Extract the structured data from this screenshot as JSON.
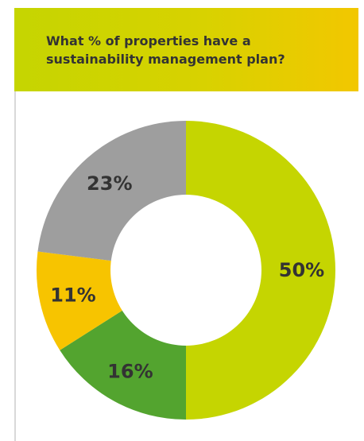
{
  "header": {
    "title": "What % of properties have a\nsustainability management plan?"
  },
  "chart_data": {
    "type": "pie",
    "donut": true,
    "title": "What % of properties have a sustainability management plan?",
    "slices": [
      {
        "value": 50,
        "label": "50%",
        "color": "#c5d501"
      },
      {
        "value": 16,
        "label": "16%",
        "color": "#53a42f"
      },
      {
        "value": 11,
        "label": "11%",
        "color": "#f7c400"
      },
      {
        "value": 23,
        "label": "23%",
        "color": "#9e9e9e"
      }
    ],
    "start": "top",
    "direction": "clockwise",
    "legend": "none"
  }
}
